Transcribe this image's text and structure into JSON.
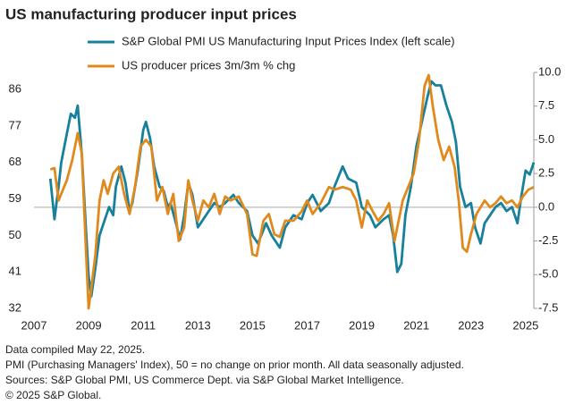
{
  "chart_data": {
    "type": "line",
    "title": "US manufacturing producer input prices",
    "notes": [
      "Data compiled May 22, 2025.",
      "PMI (Purchasing Managers' Index), 50 = no change on prior month. All data seasonally adjusted.",
      "Sources: S&P Global PMI, US Commerce Dept. via S&P Global Market Intelligence.",
      "© 2025 S&P Global."
    ],
    "xlim": [
      2007,
      2025.3
    ],
    "xticks": [
      2007,
      2009,
      2011,
      2013,
      2015,
      2017,
      2019,
      2021,
      2023,
      2025
    ],
    "ylim": [
      32,
      90.2
    ],
    "yticks": [
      32,
      41,
      50,
      59,
      68,
      77,
      86
    ],
    "y2lim": [
      -7.5,
      10
    ],
    "y2ticks": [
      {
        "value": -7.5,
        "label": "-7.5"
      },
      {
        "value": -5,
        "label": "-5.0"
      },
      {
        "value": -2.5,
        "label": "-2.5"
      },
      {
        "value": 0,
        "label": "0.0"
      },
      {
        "value": 2.5,
        "label": "2.5"
      },
      {
        "value": 5,
        "label": "5.0"
      },
      {
        "value": 7.5,
        "label": "7.5"
      },
      {
        "value": 10,
        "label": "10.0"
      }
    ],
    "series": [
      {
        "name": "S&P Global PMI US Manufacturing Input Prices Index (left scale)",
        "color": "#17809c",
        "x": [
          2007.6,
          2007.75,
          2007.9,
          2008.0,
          2008.2,
          2008.35,
          2008.5,
          2008.6,
          2008.75,
          2008.9,
          2009.0,
          2009.1,
          2009.25,
          2009.4,
          2009.6,
          2009.75,
          2009.9,
          2010.0,
          2010.2,
          2010.35,
          2010.5,
          2010.6,
          2010.8,
          2011.0,
          2011.1,
          2011.25,
          2011.4,
          2011.6,
          2011.75,
          2011.9,
          2012.0,
          2012.2,
          2012.35,
          2012.5,
          2012.65,
          2012.8,
          2013.0,
          2013.2,
          2013.4,
          2013.6,
          2013.8,
          2014.0,
          2014.3,
          2014.5,
          2014.8,
          2015.0,
          2015.2,
          2015.5,
          2015.7,
          2016.0,
          2016.2,
          2016.5,
          2016.8,
          2017.0,
          2017.2,
          2017.5,
          2017.8,
          2018.0,
          2018.3,
          2018.5,
          2018.8,
          2019.0,
          2019.3,
          2019.5,
          2019.8,
          2020.0,
          2020.15,
          2020.3,
          2020.45,
          2020.6,
          2020.8,
          2021.0,
          2021.2,
          2021.4,
          2021.55,
          2021.7,
          2021.9,
          2022.1,
          2022.3,
          2022.45,
          2022.6,
          2022.8,
          2023.0,
          2023.15,
          2023.35,
          2023.5,
          2023.7,
          2023.9,
          2024.1,
          2024.3,
          2024.5,
          2024.7,
          2024.85,
          2025.0,
          2025.15,
          2025.3
        ],
        "values": [
          64,
          54,
          62,
          68,
          75,
          80,
          79,
          82,
          70,
          52,
          40,
          35,
          42,
          50,
          54,
          57,
          55,
          62,
          67,
          63,
          56,
          58,
          66,
          76,
          78,
          74,
          67,
          62,
          61,
          57,
          58,
          53,
          49,
          55,
          63,
          60,
          52,
          54,
          56,
          58,
          57,
          58,
          60,
          58,
          56,
          50,
          48,
          53,
          50,
          47,
          52,
          55,
          54,
          58,
          60,
          56,
          58,
          62,
          67,
          64,
          63,
          57,
          55,
          52,
          54,
          55,
          50,
          41,
          43,
          55,
          62,
          72,
          78,
          84,
          88,
          87,
          87,
          82,
          78,
          73,
          62,
          57,
          58,
          52,
          48,
          53,
          55,
          57,
          58,
          56,
          57,
          53,
          60,
          66,
          65,
          68
        ]
      },
      {
        "name": "US producer prices  3m/3m % chg",
        "color": "#e08a1e",
        "axis": "y2",
        "x": [
          2007.6,
          2007.75,
          2007.9,
          2008.0,
          2008.2,
          2008.4,
          2008.6,
          2008.75,
          2008.9,
          2009.0,
          2009.1,
          2009.25,
          2009.4,
          2009.55,
          2009.7,
          2009.9,
          2010.1,
          2010.3,
          2010.5,
          2010.7,
          2010.9,
          2011.1,
          2011.3,
          2011.5,
          2011.7,
          2011.9,
          2012.1,
          2012.3,
          2012.5,
          2012.65,
          2012.8,
          2013.0,
          2013.2,
          2013.4,
          2013.6,
          2013.8,
          2014.0,
          2014.2,
          2014.5,
          2014.8,
          2015.0,
          2015.15,
          2015.4,
          2015.6,
          2015.8,
          2016.0,
          2016.2,
          2016.5,
          2016.8,
          2017.0,
          2017.2,
          2017.5,
          2017.8,
          2018.0,
          2018.3,
          2018.6,
          2018.8,
          2019.0,
          2019.2,
          2019.4,
          2019.6,
          2019.8,
          2020.0,
          2020.2,
          2020.35,
          2020.5,
          2020.7,
          2020.9,
          2021.1,
          2021.3,
          2021.45,
          2021.6,
          2021.8,
          2022.0,
          2022.2,
          2022.4,
          2022.55,
          2022.7,
          2022.85,
          2023.0,
          2023.2,
          2023.5,
          2023.7,
          2023.9,
          2024.1,
          2024.3,
          2024.5,
          2024.7,
          2024.9,
          2025.1,
          2025.3
        ],
        "values": [
          2.8,
          2.9,
          0.5,
          1.0,
          2.0,
          3.5,
          5.5,
          4.0,
          -3,
          -7.5,
          -6,
          -3.5,
          0.5,
          2.0,
          1.0,
          2.5,
          3.0,
          1.0,
          -0.5,
          1.5,
          4.5,
          5.0,
          4.5,
          0.5,
          1.5,
          -0.5,
          1.0,
          -2.5,
          -1.5,
          2.0,
          0.5,
          -1.0,
          0.5,
          0.0,
          1.0,
          -0.5,
          0.8,
          0.5,
          0.8,
          -0.5,
          -3.5,
          -3.6,
          -1.0,
          -0.5,
          -2.0,
          -2.2,
          -1.0,
          -1.0,
          -0.3,
          0.5,
          -0.5,
          0.3,
          1.5,
          1.3,
          1.5,
          1.3,
          0.5,
          -1.5,
          0.5,
          -0.3,
          -1.0,
          -0.5,
          0.3,
          -2.5,
          -1.0,
          0.5,
          1.5,
          2.5,
          5.0,
          9.0,
          9.8,
          7.5,
          5.0,
          3.5,
          4.5,
          3.0,
          0.5,
          -3.0,
          -3.3,
          -2.0,
          -0.5,
          0.5,
          0.0,
          0.3,
          0.8,
          0.3,
          0.5,
          0.0,
          0.8,
          1.3,
          1.5
        ]
      }
    ]
  }
}
